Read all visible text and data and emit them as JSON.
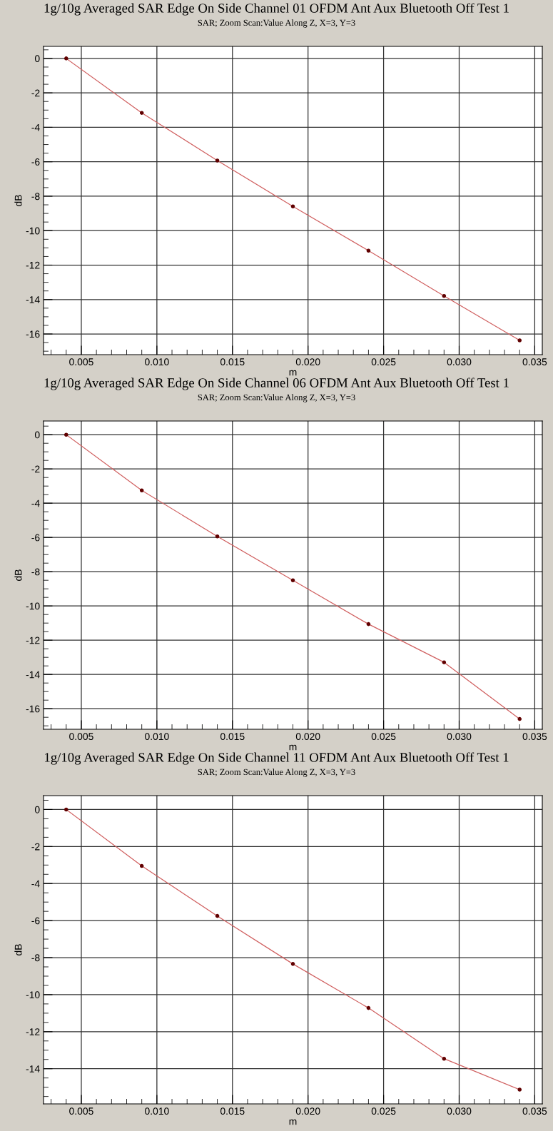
{
  "chart_data": [
    {
      "type": "line",
      "title": "1g/10g Averaged SAR Edge On Side Channel 01 OFDM Ant Aux Bluetooth Off Test 1",
      "subtitle": "SAR; Zoom Scan:Value Along Z, X=3, Y=3",
      "xlabel": "m",
      "ylabel": "dB",
      "x": [
        0.004,
        0.009,
        0.014,
        0.019,
        0.024,
        0.029,
        0.034
      ],
      "series": [
        {
          "color": "#d06060",
          "values": [
            0,
            -3.16,
            -5.93,
            -8.59,
            -11.16,
            -13.79,
            -16.37
          ]
        }
      ],
      "xlim": [
        0.0025,
        0.0355
      ],
      "xticks": [
        {
          "value": 0.005,
          "label": "0.005"
        },
        {
          "value": 0.01,
          "label": "0.010"
        },
        {
          "value": 0.015,
          "label": "0.015"
        },
        {
          "value": 0.02,
          "label": "0.020"
        },
        {
          "value": 0.025,
          "label": "0.025"
        },
        {
          "value": 0.03,
          "label": "0.030"
        },
        {
          "value": 0.035,
          "label": "0.035"
        }
      ],
      "ylim": [
        -17.2,
        0.7
      ],
      "yticks": [
        0,
        -2,
        -4,
        -6,
        -8,
        -10,
        -12,
        -14,
        -16
      ],
      "grid": true,
      "marker": "circle",
      "line_style": "solid"
    },
    {
      "type": "line",
      "title": "1g/10g Averaged SAR Edge On Side Channel 06 OFDM Ant Aux Bluetooth Off Test 1",
      "subtitle": "SAR; Zoom Scan:Value Along Z, X=3, Y=3",
      "xlabel": "m",
      "ylabel": "dB",
      "x": [
        0.004,
        0.009,
        0.014,
        0.019,
        0.024,
        0.029,
        0.034
      ],
      "series": [
        {
          "color": "#d06060",
          "values": [
            0,
            -3.25,
            -5.94,
            -8.5,
            -11.06,
            -13.29,
            -16.6
          ]
        }
      ],
      "xlim": [
        0.0025,
        0.0355
      ],
      "xticks": [
        {
          "value": 0.005,
          "label": "0.005"
        },
        {
          "value": 0.01,
          "label": "0.010"
        },
        {
          "value": 0.015,
          "label": "0.015"
        },
        {
          "value": 0.02,
          "label": "0.020"
        },
        {
          "value": 0.025,
          "label": "0.025"
        },
        {
          "value": 0.03,
          "label": "0.030"
        },
        {
          "value": 0.035,
          "label": "0.035"
        }
      ],
      "ylim": [
        -17.2,
        0.8
      ],
      "yticks": [
        0,
        -2,
        -4,
        -6,
        -8,
        -10,
        -12,
        -14,
        -16
      ],
      "grid": true,
      "marker": "circle",
      "line_style": "solid"
    },
    {
      "type": "line",
      "title": "1g/10g Averaged SAR Edge On Side Channel 11 OFDM Ant Aux Bluetooth Off Test 1",
      "subtitle": "SAR; Zoom Scan:Value Along Z, X=3, Y=3",
      "xlabel": "m",
      "ylabel": "dB",
      "x": [
        0.004,
        0.009,
        0.014,
        0.019,
        0.024,
        0.029,
        0.034
      ],
      "series": [
        {
          "color": "#d06060",
          "values": [
            0,
            -3.05,
            -5.75,
            -8.34,
            -10.72,
            -13.46,
            -15.13
          ]
        }
      ],
      "xlim": [
        0.0025,
        0.0355
      ],
      "xticks": [
        {
          "value": 0.005,
          "label": "0.005"
        },
        {
          "value": 0.01,
          "label": "0.010"
        },
        {
          "value": 0.015,
          "label": "0.015"
        },
        {
          "value": 0.02,
          "label": "0.020"
        },
        {
          "value": 0.025,
          "label": "0.025"
        },
        {
          "value": 0.03,
          "label": "0.030"
        },
        {
          "value": 0.035,
          "label": "0.035"
        }
      ],
      "ylim": [
        -15.9,
        0.75
      ],
      "yticks": [
        0,
        -2,
        -4,
        -6,
        -8,
        -10,
        -12,
        -14
      ],
      "grid": true,
      "marker": "circle",
      "line_style": "solid"
    }
  ]
}
